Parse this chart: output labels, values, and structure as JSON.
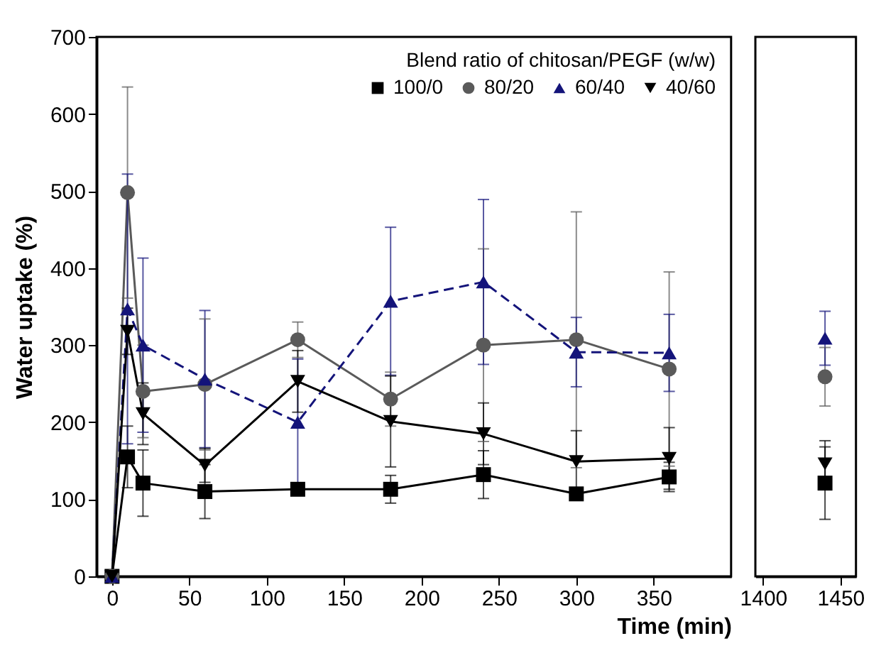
{
  "chart_data": [
    {
      "type": "line",
      "xlabel": "Time (min)",
      "ylabel": "Water uptake (%)",
      "legend_title": "Blend ratio of chitosan/PEGF (w/w)",
      "legend": "top right",
      "grid": false,
      "x": [
        0,
        10,
        20,
        60,
        120,
        180,
        240,
        300,
        360
      ],
      "xlim": [
        -10,
        400
      ],
      "xticks": [
        0,
        50,
        100,
        150,
        200,
        250,
        300,
        350
      ],
      "ylim": [
        0,
        700
      ],
      "yticks": [
        0,
        100,
        200,
        300,
        400,
        500,
        600,
        700
      ],
      "series": [
        {
          "name": "100/0",
          "color": "#000000",
          "marker": "square",
          "line_style": "solid",
          "values": [
            0,
            155,
            121,
            110,
            113,
            113,
            132,
            107,
            129
          ],
          "errors": [
            null,
            40,
            43,
            35,
            8,
            18,
            31,
            5,
            19
          ]
        },
        {
          "name": "80/20",
          "color": "#5a5a5a",
          "marker": "circle",
          "line_style": "solid",
          "values": [
            0,
            498,
            240,
            249,
            307,
            230,
            300,
            307,
            269
          ],
          "errors": [
            null,
            137,
            60,
            85,
            23,
            35,
            125,
            166,
            126
          ]
        },
        {
          "name": "60/40",
          "color": "#14147a",
          "marker": "triangle",
          "line_style": "dashed",
          "values": [
            0,
            347,
            300,
            256,
            200,
            357,
            382,
            291,
            290
          ],
          "errors": [
            null,
            175,
            113,
            89,
            82,
            96,
            107,
            45,
            50
          ]
        },
        {
          "name": "40/60",
          "color": "#000000",
          "marker": "triangle-down",
          "line_style": "solid",
          "values": [
            0,
            318,
            211,
            144,
            253,
            201,
            185,
            149,
            153
          ],
          "errors": [
            null,
            30,
            40,
            22,
            40,
            59,
            40,
            40,
            40
          ]
        }
      ]
    },
    {
      "type": "line",
      "tick_labels": "x",
      "grid": false,
      "x": [
        1440
      ],
      "xlim": [
        1395,
        1460
      ],
      "xticks": [
        1400,
        1450
      ],
      "ylim": [
        0,
        700
      ],
      "series": [
        {
          "color": "#000000",
          "marker": "square",
          "line_style": "solid",
          "values": [
            121
          ],
          "errors": [
            47
          ]
        },
        {
          "color": "#5a5a5a",
          "marker": "circle",
          "line_style": "solid",
          "values": [
            259
          ],
          "errors": [
            38
          ]
        },
        {
          "color": "#14147a",
          "marker": "triangle",
          "line_style": "dashed",
          "values": [
            309
          ],
          "errors": [
            35
          ]
        },
        {
          "color": "#000000",
          "marker": "triangle-down",
          "line_style": "solid",
          "values": [
            146
          ],
          "errors": [
            30
          ]
        }
      ]
    }
  ]
}
